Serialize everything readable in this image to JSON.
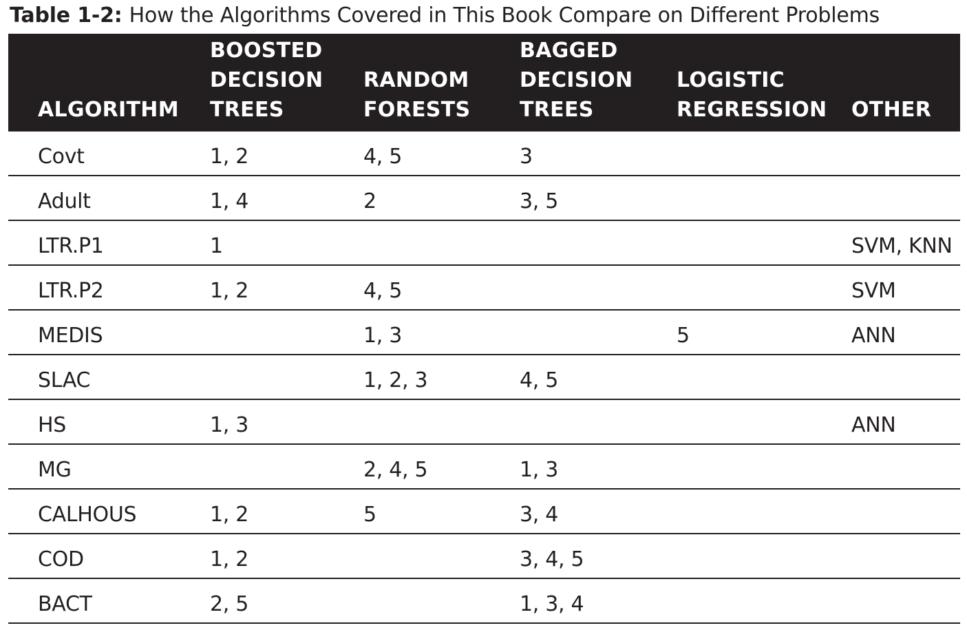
{
  "caption": {
    "label": "Table 1-2:",
    "title": "How the Algorithms Covered in This Book Compare on Different Problems"
  },
  "columns": [
    {
      "lines": [
        "ALGORITHM"
      ]
    },
    {
      "lines": [
        "BOOSTED",
        "DECISION",
        "TREES"
      ]
    },
    {
      "lines": [
        "RANDOM",
        "FORESTS"
      ]
    },
    {
      "lines": [
        "BAGGED",
        "DECISION",
        "TREES"
      ]
    },
    {
      "lines": [
        "LOGISTIC",
        "REGRESSION"
      ]
    },
    {
      "lines": [
        "OTHER"
      ]
    }
  ],
  "rows": [
    [
      "Covt",
      "1, 2",
      "4, 5",
      "3",
      "",
      ""
    ],
    [
      "Adult",
      "1, 4",
      "2",
      "3, 5",
      "",
      ""
    ],
    [
      "LTR.P1",
      "1",
      "",
      "",
      "",
      "SVM, KNN"
    ],
    [
      "LTR.P2",
      "1, 2",
      "4, 5",
      "",
      "",
      "SVM"
    ],
    [
      "MEDIS",
      "",
      "1, 3",
      "",
      "5",
      "ANN"
    ],
    [
      "SLAC",
      "",
      "1, 2, 3",
      "4, 5",
      "",
      ""
    ],
    [
      "HS",
      "1, 3",
      "",
      "",
      "",
      "ANN"
    ],
    [
      "MG",
      "",
      "2, 4, 5",
      "1, 3",
      "",
      ""
    ],
    [
      "CALHOUS",
      "1, 2",
      "5",
      "3, 4",
      "",
      ""
    ],
    [
      "COD",
      "1, 2",
      "",
      "3, 4, 5",
      "",
      ""
    ],
    [
      "BACT",
      "2, 5",
      "",
      "1, 3, 4",
      "",
      ""
    ]
  ]
}
